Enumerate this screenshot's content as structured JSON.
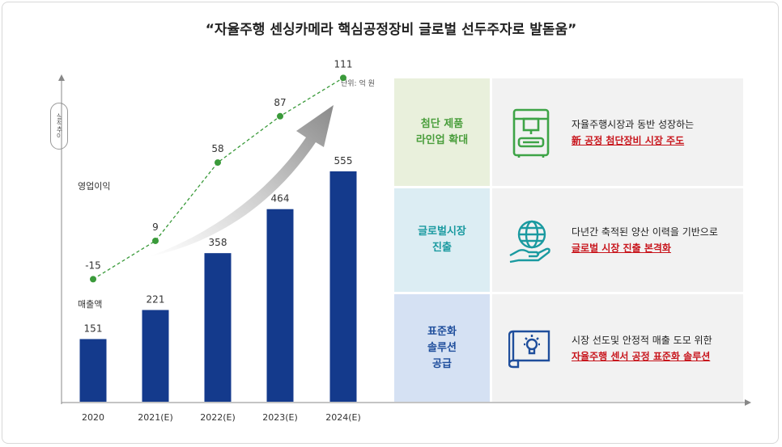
{
  "title": "“자율주행 센싱카메라 핵심공정장비 글로벌 선두주자로 발돋움”",
  "unit_label": "단위: 억 원",
  "y_axis_badge": "실적추이",
  "legend": {
    "profit": "영업이익",
    "sales": "매출액"
  },
  "chart_data": {
    "type": "bar",
    "categories": [
      "2020",
      "2021(E)",
      "2022(E)",
      "2023(E)",
      "2024(E)"
    ],
    "series": [
      {
        "name": "매출액",
        "type": "bar",
        "values": [
          151,
          221,
          358,
          464,
          555
        ],
        "color": "#143a8c"
      },
      {
        "name": "영업이익",
        "type": "line",
        "values": [
          -15,
          9,
          58,
          87,
          111
        ],
        "color": "#3a9a3a"
      }
    ],
    "value_labels": {
      "sales": [
        "151",
        "221",
        "358",
        "464",
        "555"
      ],
      "profit": [
        "-15",
        "9",
        "58",
        "87",
        "111"
      ]
    }
  },
  "strategies": [
    {
      "category": "첨단 제품\n라인업 확대",
      "icon": "machine-icon",
      "line1": "자율주행시장과 동반 성장하는",
      "line2": "新 공정 첨단장비 시장 주도",
      "bg": "#e9f0dc",
      "text_color": "#4a9e3c"
    },
    {
      "category": "글로벌시장\n진출",
      "icon": "globe-hand-icon",
      "line1": "다년간 축적된 양산 이력을 기반으로",
      "line2": "글로벌 시장 진출 본격화",
      "bg": "#dcedf3",
      "text_color": "#1a9aa0"
    },
    {
      "category": "표준화\n솔루션\n공급",
      "icon": "lightbulb-blueprint-icon",
      "line1": "시장 선도및 안정적 매출 도모 위한",
      "line2": "자율주행 센서 공정 표준화 솔루션",
      "bg": "#d5e1f3",
      "text_color": "#1f4e9c"
    }
  ]
}
